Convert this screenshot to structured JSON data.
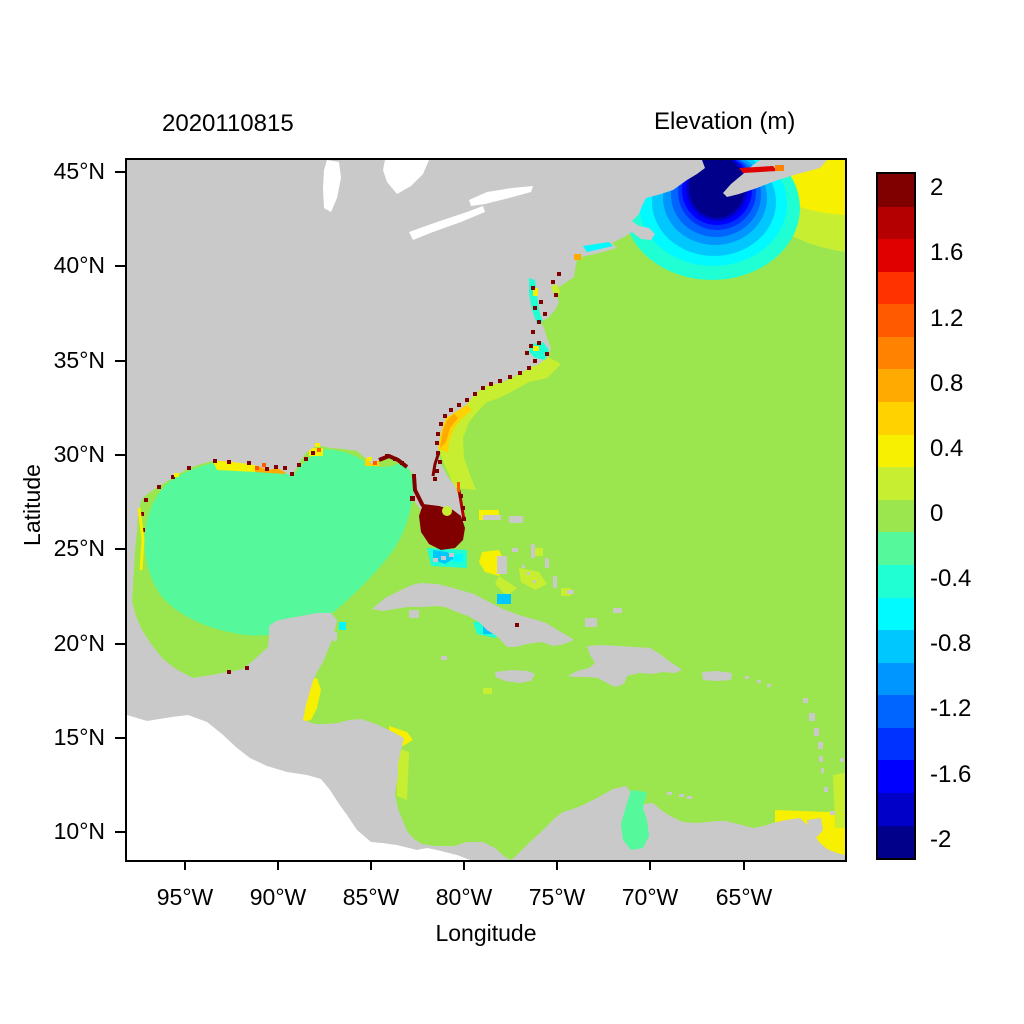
{
  "figure": {
    "date_label": "2020110815",
    "colorbar_title": "Elevation (m)",
    "axes": {
      "xlabel": "Longitude",
      "ylabel": "Latitude",
      "x_ticks": [
        "95°W",
        "90°W",
        "85°W",
        "80°W",
        "75°W",
        "70°W",
        "65°W"
      ],
      "y_ticks": [
        "45°N",
        "40°N",
        "35°N",
        "30°N",
        "25°N",
        "20°N",
        "15°N",
        "10°N"
      ]
    },
    "colorbar_labels": [
      "2",
      "1.6",
      "1.2",
      "0.8",
      "0.4",
      "0",
      "-0.4",
      "-0.8",
      "-1.2",
      "-1.6",
      "-2"
    ],
    "colors": {
      "background": "#ffffff",
      "land": "#c9c9c9",
      "nodata": "#ffffff",
      "frame": "#000000",
      "palette": [
        "#00008b",
        "#0000c8",
        "#0000ff",
        "#0032ff",
        "#0064ff",
        "#0096ff",
        "#00c8ff",
        "#00faff",
        "#1fffd3",
        "#55f99b",
        "#9be64f",
        "#c8ee32",
        "#f7f000",
        "#ffd200",
        "#ffaa00",
        "#ff8200",
        "#ff5a00",
        "#ff3200",
        "#e10000",
        "#b40000",
        "#800000"
      ]
    }
  },
  "chart_data": {
    "type": "heatmap",
    "title": "Elevation (m)",
    "subtitle_datestamp": "2020110815",
    "xlabel": "Longitude",
    "ylabel": "Latitude",
    "x_tick_labels": [
      "95°W",
      "90°W",
      "85°W",
      "80°W",
      "75°W",
      "70°W",
      "65°W"
    ],
    "y_tick_labels": [
      "45°N",
      "40°N",
      "35°N",
      "30°N",
      "25°N",
      "20°N",
      "15°N",
      "10°N"
    ],
    "xlim_deg_west": [
      98,
      60
    ],
    "ylim_deg_north": [
      8.5,
      45.6
    ],
    "grid": false,
    "colorbar": {
      "orientation": "vertical-right",
      "range_m": [
        -2,
        2
      ],
      "contour_step_m": 0.2,
      "tick_labels": [
        "2",
        "1.6",
        "1.2",
        "0.8",
        "0.4",
        "0",
        "-0.4",
        "-0.8",
        "-1.2",
        "-1.6",
        "-2"
      ]
    },
    "background_field_value_m": 0.1,
    "features": [
      {
        "region": "Open Atlantic, Caribbean Sea and most of model domain",
        "elevation_m": "0 to 0.2"
      },
      {
        "region": "Gulf of Mexico interior",
        "elevation_m": "-0.2 to 0"
      },
      {
        "region": "Gulf of Maine / Bay of Fundy set-down core",
        "elevation_m": "-1.8 to -2"
      },
      {
        "region": "Rings around Gulf of Maine minimum",
        "elevation_m": "-1.6 to -0.4"
      },
      {
        "region": "Minas Basin at head of Bay of Fundy (red streak, top right)",
        "elevation_m": "1.6 to 2"
      },
      {
        "region": "Scotian Shelf east of Nova Scotia",
        "elevation_m": "0.2 to 0.5"
      },
      {
        "region": "Southwest Florida / Everglades coastal cells (dark red blob)",
        "elevation_m": "1.8 to 2"
      },
      {
        "region": "Florida Bay and Keys",
        "elevation_m": "-0.5 to -0.8"
      },
      {
        "region": "Georgia / South Carolina nearshore band (South Atlantic Bight)",
        "elevation_m": "0.4 to 1.0"
      },
      {
        "region": "Coastal marsh speckles, NE Florida to Chesapeake Bay",
        "elevation_m": "1.8 to 2"
      },
      {
        "region": "Louisiana-Mississippi shelf and marshes",
        "elevation_m": "0.4 to 1.2"
      },
      {
        "region": "Pamlico Sound and Chesapeake Bay estuaries",
        "elevation_m": "-0.4 with +2 speckles"
      },
      {
        "region": "Bahama Banks patches",
        "elevation_m": "0.2 to 0.5"
      },
      {
        "region": "Cays north and south of Cuba",
        "elevation_m": "-0.6 to -0.4"
      },
      {
        "region": "Belize / Gulf of Honduras shelf",
        "elevation_m": "0.3 to 0.5"
      },
      {
        "region": "Gulf of Venezuela / Lake Maracaibo",
        "elevation_m": "-0.2 to 0"
      },
      {
        "region": "Trinidad / Orinoco delta and SE edge strip",
        "elevation_m": "0.2 to 0.4"
      },
      {
        "region": "Land",
        "elevation_m": "no data (gray)"
      },
      {
        "region": "Pacific Ocean outside model domain (bottom-left)",
        "elevation_m": "no data (white)"
      }
    ]
  }
}
